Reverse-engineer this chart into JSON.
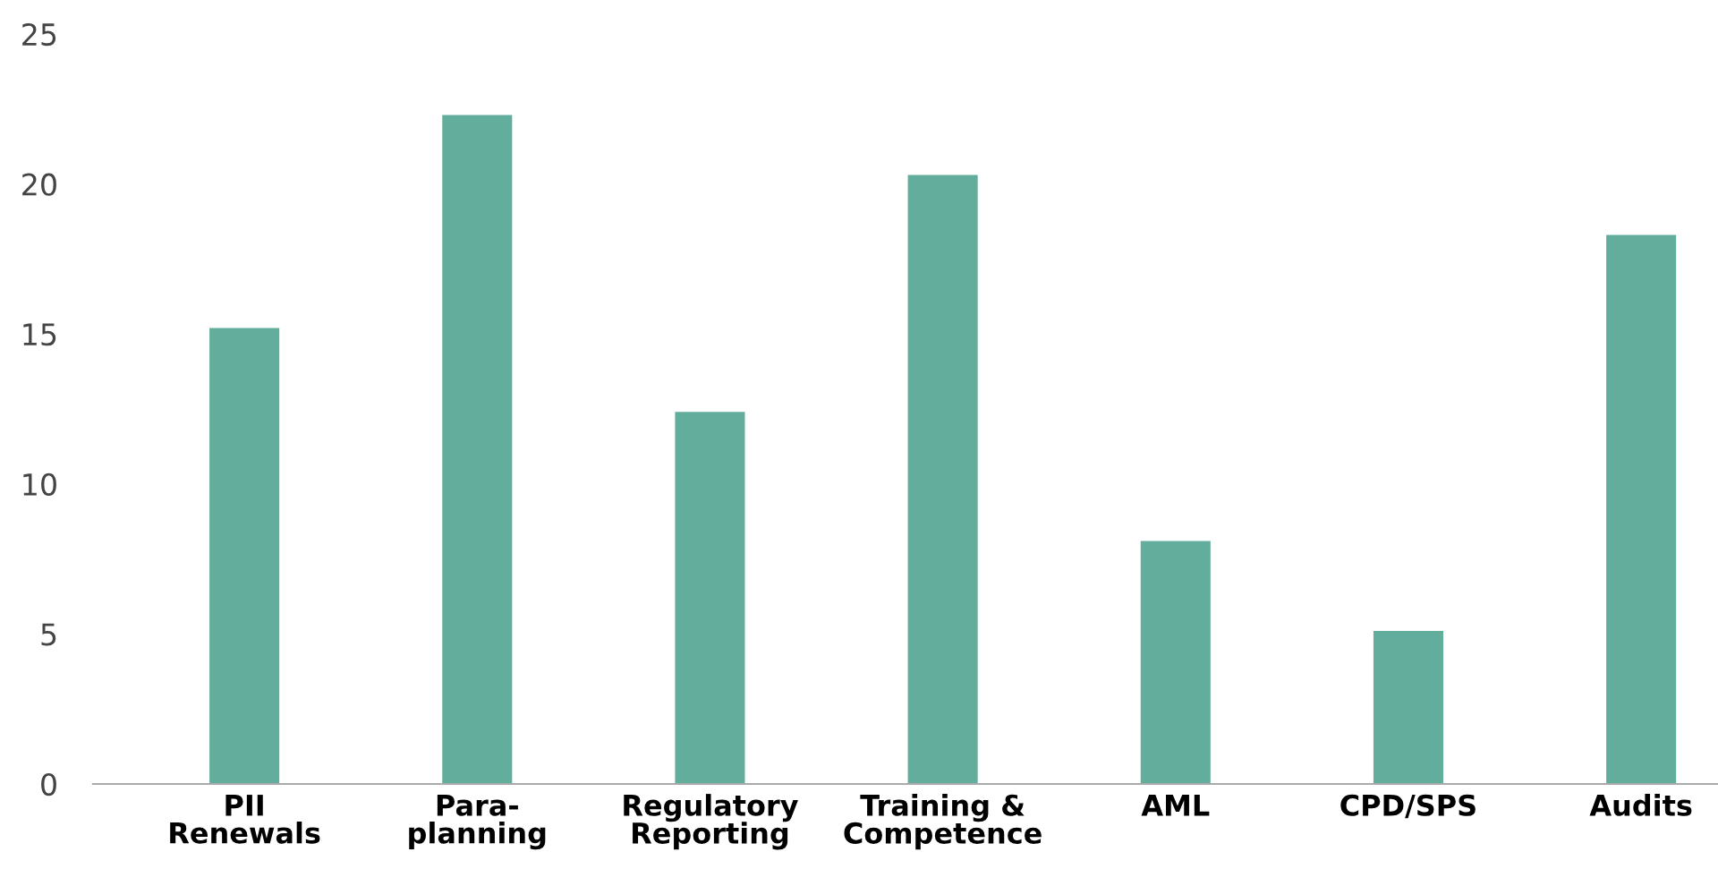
{
  "chart_data": {
    "type": "bar",
    "categories": [
      "PII\nRenewals",
      "Para-\nplanning",
      "Regulatory\nReporting",
      "Training &\nCompetence",
      "AML",
      "CPD/SPS",
      "Audits"
    ],
    "values": [
      15.2,
      22.3,
      12.4,
      20.3,
      8.1,
      5.1,
      18.3
    ],
    "color": "#62ad9b",
    "ylim": [
      0,
      25
    ],
    "yticks": [
      0,
      5,
      10,
      15,
      20,
      25
    ],
    "grid": false,
    "legend": false
  }
}
